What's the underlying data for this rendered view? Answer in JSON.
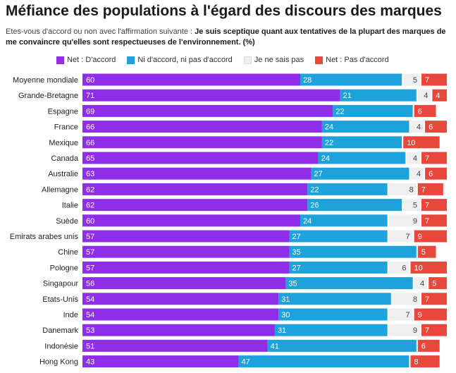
{
  "title": "Méfiance des populations à l'égard des discours des marques",
  "subtitle": {
    "intro": "Etes-vous d'accord ou non avec l'affirmation suivante : ",
    "statement": "Je suis sceptique quant aux tentatives de la plupart des marques de me convaincre qu'elles sont respectueuses de l'environnement. (%)"
  },
  "colors": {
    "agree": "#8f2ee8",
    "neutral": "#1ea2db",
    "dontknow": "#efefef",
    "disagree": "#e8473b"
  },
  "chart_data": {
    "type": "bar",
    "orientation": "horizontal",
    "stacked": true,
    "legend_position": "top",
    "grid": false,
    "categories": [
      "Moyenne mondiale",
      "Grande-Bretagne",
      "Espagne",
      "France",
      "Mexique",
      "Canada",
      "Australie",
      "Allemagne",
      "Italie",
      "Suède",
      "Emirats arabes unis",
      "Chine",
      "Pologne",
      "Singapour",
      "Etats-Unis",
      "Inde",
      "Danemark",
      "Indonésie",
      "Hong Kong"
    ],
    "series": [
      {
        "name": "Net : D'accord",
        "key": "agree",
        "values": [
          60,
          71,
          69,
          66,
          66,
          65,
          63,
          62,
          62,
          60,
          57,
          57,
          57,
          56,
          54,
          54,
          53,
          51,
          43
        ]
      },
      {
        "name": "Ni d'accord, ni pas d'accord",
        "key": "neutral",
        "values": [
          28,
          21,
          22,
          24,
          22,
          24,
          27,
          22,
          26,
          24,
          27,
          35,
          27,
          35,
          31,
          30,
          31,
          41,
          47
        ]
      },
      {
        "name": "Je ne sais pas",
        "key": "dontknow",
        "values": [
          5,
          4,
          null,
          4,
          null,
          4,
          4,
          8,
          5,
          9,
          7,
          null,
          6,
          4,
          8,
          7,
          9,
          null,
          null
        ]
      },
      {
        "name": "Net : Pas d'accord",
        "key": "disagree",
        "values": [
          7,
          4,
          6,
          6,
          10,
          7,
          6,
          7,
          7,
          7,
          9,
          5,
          10,
          5,
          7,
          9,
          7,
          6,
          8
        ]
      }
    ],
    "xlim": [
      0,
      100
    ]
  }
}
